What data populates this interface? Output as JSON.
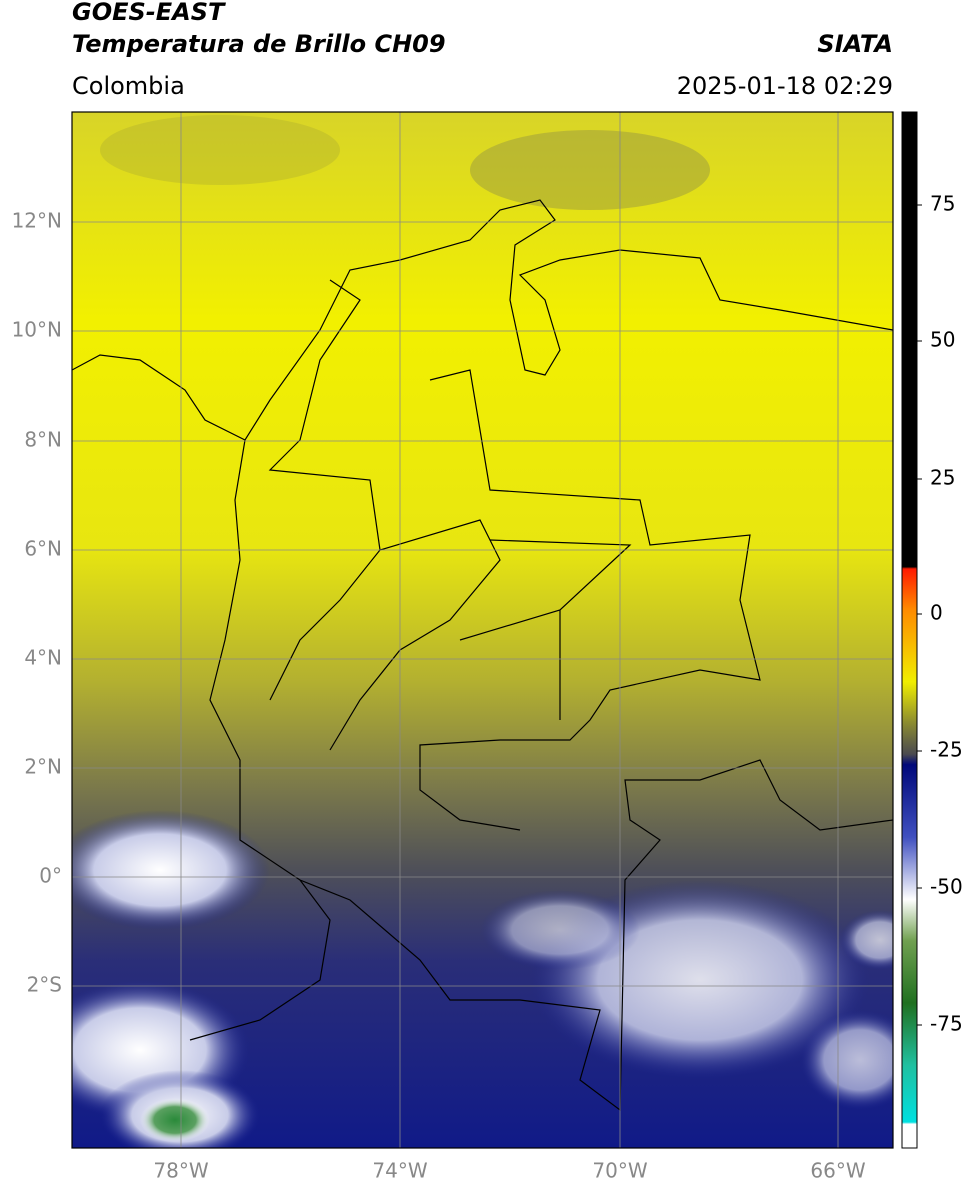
{
  "header": {
    "title": "GOES-EAST",
    "subtitle": "Temperatura de Brillo CH09",
    "region": "Colombia",
    "agency": "SIATA",
    "datetime": "2025-01-18 02:29"
  },
  "map": {
    "lat_labels": [
      "12°N",
      "10°N",
      "8°N",
      "6°N",
      "4°N",
      "2°N",
      "0°",
      "2°S"
    ],
    "lon_labels": [
      "78°W",
      "74°W",
      "70°W",
      "66°W"
    ]
  },
  "colorbar": {
    "labels": [
      "75",
      "50",
      "25",
      "0",
      "-25",
      "-50",
      "-75"
    ]
  }
}
